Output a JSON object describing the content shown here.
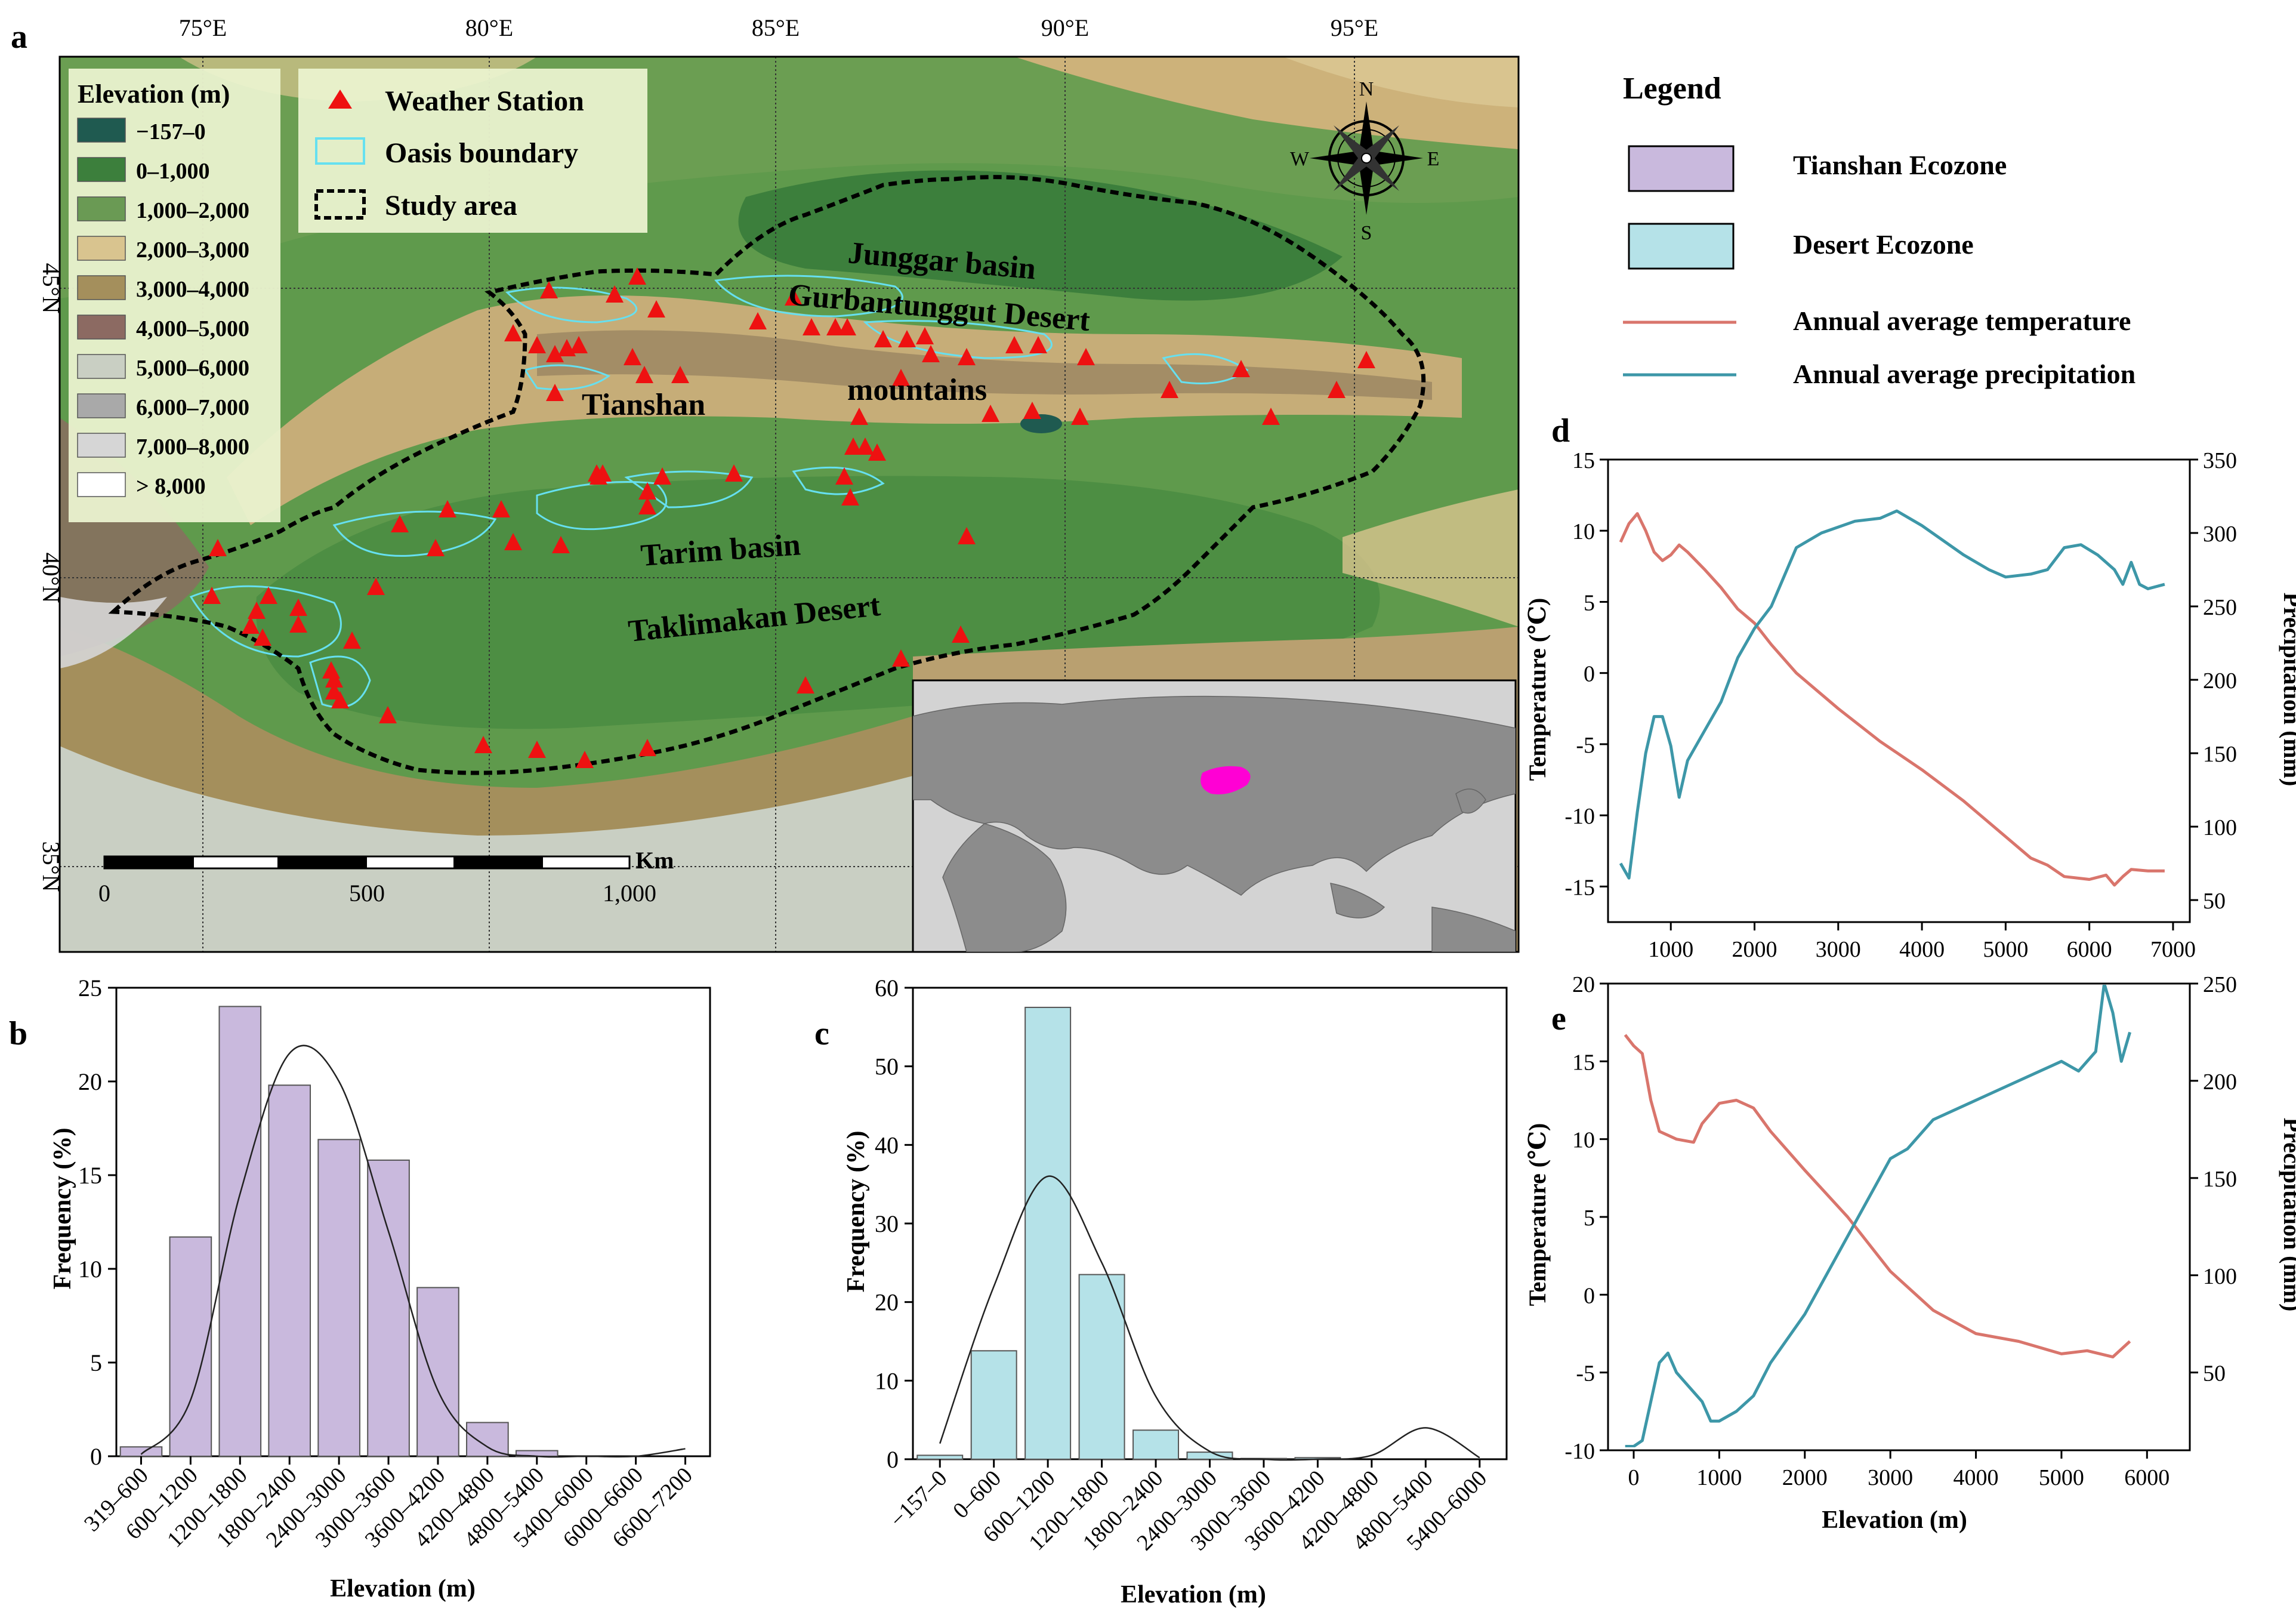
{
  "colors": {
    "tianshan": "#c9b9dd",
    "desert": "#b5e2e8",
    "temp_line": "#d9756c",
    "precip_line": "#3d97a8",
    "station": "#ee1111",
    "oasis": "#66e0f0",
    "map_low": "#2e7a3e",
    "map_mid": "#5f9a4c",
    "map_high": "#c8b184"
  },
  "panel_labels": {
    "a": "a",
    "b": "b",
    "c": "c",
    "d": "d",
    "e": "e"
  },
  "map": {
    "lon_labels": [
      "75°E",
      "80°E",
      "85°E",
      "90°E",
      "95°E"
    ],
    "lat_labels": [
      "45°N",
      "40°N",
      "35°N"
    ],
    "elevation_legend": {
      "title": "Elevation (m)",
      "items": [
        {
          "label": "−157–0",
          "color": "#1f5a50"
        },
        {
          "label": "0–1,000",
          "color": "#3c7f3c"
        },
        {
          "label": "1,000–2,000",
          "color": "#6a9a54"
        },
        {
          "label": "2,000–3,000",
          "color": "#d9c48f"
        },
        {
          "label": "3,000–4,000",
          "color": "#a48f5c"
        },
        {
          "label": "4,000–5,000",
          "color": "#8c6a62"
        },
        {
          "label": "5,000–6,000",
          "color": "#c9cfc3"
        },
        {
          "label": "6,000–7,000",
          "color": "#a9a9a9"
        },
        {
          "label": "7,000–8,000",
          "color": "#d6d6d6"
        },
        {
          "label": "> 8,000",
          "color": "#ffffff"
        }
      ]
    },
    "symbol_legend": {
      "station": "Weather Station",
      "oasis": "Oasis boundary",
      "study": "Study area"
    },
    "compass": {
      "n": "N",
      "s": "S",
      "e": "E",
      "w": "W"
    },
    "place_labels": {
      "junggar": "Junggar basin",
      "gurbantunggut": "Gurbantunggut Desert",
      "mountains": "mountains",
      "tianshan": "Tianshan",
      "tarim": "Tarim basin",
      "taklimakan": "Taklimakan Desert"
    },
    "scale": {
      "ticks": [
        "0",
        "500",
        "1,000"
      ],
      "unit": "Km"
    }
  },
  "legend": {
    "title": "Legend",
    "tianshan": "Tianshan Ecozone",
    "desert": "Desert Ecozone",
    "temp": "Annual average temperature",
    "precip": "Annual average precipitation"
  },
  "chart_data": [
    {
      "id": "b",
      "type": "bar",
      "xlabel": "Elevation (m)",
      "ylabel": "Frequency (%)",
      "ylim": [
        0,
        25
      ],
      "yticks": [
        "0",
        "5",
        "10",
        "15",
        "20",
        "25"
      ],
      "categories": [
        "319–600",
        "600–1200",
        "1200–1800",
        "1800–2400",
        "2400–3000",
        "3000–3600",
        "3600–4200",
        "4200–4800",
        "4800–5400",
        "5400–6000",
        "6000–6600",
        "6600–7200"
      ],
      "values": [
        0.5,
        11.7,
        24.0,
        19.8,
        16.9,
        15.8,
        9.0,
        1.8,
        0.3,
        0,
        0,
        0
      ],
      "fit_curve": [
        0.1,
        3.0,
        14.0,
        21.5,
        20.0,
        12.0,
        3.5,
        0.5,
        0,
        0,
        0,
        0.4
      ]
    },
    {
      "id": "c",
      "type": "bar",
      "xlabel": "Elevation (m)",
      "ylabel": "Frequency (%)",
      "ylim": [
        0,
        60
      ],
      "yticks": [
        "0",
        "10",
        "20",
        "30",
        "40",
        "50",
        "60"
      ],
      "categories": [
        "−157–0",
        "0–600",
        "600–1200",
        "1200–1800",
        "1800–2400",
        "2400–3000",
        "3000–3600",
        "3600–4200",
        "4200–4800",
        "4800–5400",
        "5400–6000"
      ],
      "values": [
        0.5,
        13.8,
        57.5,
        23.5,
        3.7,
        0.9,
        0.1,
        0.2,
        0,
        0,
        0
      ],
      "fit_curve": [
        2.0,
        22.0,
        36.0,
        25.0,
        8.0,
        1.0,
        0,
        0,
        0.5,
        4.0,
        0.2
      ]
    },
    {
      "id": "d",
      "type": "line",
      "xlabel": "",
      "ylabel": "Temperature (℃)",
      "y2label": "Precipitation (mm)",
      "xlim": [
        250,
        7200
      ],
      "xticks": [
        "1000",
        "2000",
        "3000",
        "4000",
        "5000",
        "6000",
        "7000"
      ],
      "ylim": [
        -17.5,
        15
      ],
      "yticks": [
        "-15",
        "-10",
        "-5",
        "0",
        "5",
        "10",
        "15"
      ],
      "y2lim": [
        35,
        350
      ],
      "y2ticks": [
        "50",
        "100",
        "150",
        "200",
        "250",
        "300",
        "350"
      ],
      "series": [
        {
          "axis": "left",
          "x": [
            400,
            500,
            600,
            700,
            800,
            900,
            1000,
            1100,
            1200,
            1400,
            1600,
            1800,
            2000,
            2200,
            2500,
            3000,
            3500,
            4000,
            4500,
            5000,
            5300,
            5500,
            5700,
            6000,
            6200,
            6300,
            6400,
            6500,
            6700,
            6900
          ],
          "y": [
            9.2,
            10.5,
            11.2,
            10.0,
            8.5,
            7.9,
            8.3,
            9.0,
            8.5,
            7.3,
            6.0,
            4.5,
            3.5,
            2.0,
            0,
            -2.5,
            -4.8,
            -6.8,
            -9.0,
            -11.5,
            -13.0,
            -13.5,
            -14.3,
            -14.5,
            -14.2,
            -14.9,
            -14.3,
            -13.8,
            -13.9,
            -13.9
          ]
        },
        {
          "axis": "right",
          "x": [
            400,
            500,
            600,
            700,
            800,
            900,
            1000,
            1100,
            1200,
            1400,
            1600,
            1800,
            2000,
            2200,
            2500,
            2800,
            3200,
            3500,
            3700,
            4000,
            4500,
            4800,
            5000,
            5300,
            5500,
            5700,
            5900,
            6100,
            6300,
            6400,
            6500,
            6600,
            6700,
            6900
          ],
          "y": [
            75,
            65,
            110,
            150,
            175,
            175,
            155,
            120,
            145,
            165,
            185,
            215,
            235,
            250,
            290,
            300,
            308,
            310,
            315,
            305,
            285,
            275,
            270,
            272,
            275,
            290,
            292,
            285,
            275,
            265,
            280,
            265,
            262,
            265
          ]
        }
      ]
    },
    {
      "id": "e",
      "type": "line",
      "xlabel": "Elevation (m)",
      "ylabel": "Temperature (℃)",
      "y2label": "Precipitation (mm)",
      "xlim": [
        -300,
        6500
      ],
      "xticks": [
        "0",
        "1000",
        "2000",
        "3000",
        "4000",
        "5000",
        "6000"
      ],
      "ylim": [
        -10,
        20
      ],
      "yticks": [
        "-10",
        "-5",
        "0",
        "5",
        "10",
        "15",
        "20"
      ],
      "y2lim": [
        10,
        250
      ],
      "y2ticks": [
        "50",
        "100",
        "150",
        "200",
        "250"
      ],
      "series": [
        {
          "axis": "left",
          "x": [
            -100,
            0,
            100,
            200,
            300,
            500,
            700,
            800,
            1000,
            1200,
            1400,
            1600,
            2000,
            2500,
            3000,
            3500,
            4000,
            4500,
            5000,
            5300,
            5600,
            5800
          ],
          "y": [
            16.7,
            16.0,
            15.5,
            12.5,
            10.5,
            10.0,
            9.8,
            11.0,
            12.3,
            12.5,
            12.0,
            10.5,
            8.0,
            5.0,
            1.5,
            -1.0,
            -2.5,
            -3.0,
            -3.8,
            -3.6,
            -4.0,
            -3.0
          ]
        },
        {
          "axis": "right",
          "x": [
            -100,
            0,
            100,
            200,
            300,
            400,
            500,
            600,
            700,
            800,
            900,
            1000,
            1200,
            1400,
            1600,
            2000,
            2500,
            3000,
            3200,
            3500,
            4000,
            4500,
            5000,
            5200,
            5400,
            5500,
            5600,
            5700,
            5800
          ],
          "y": [
            12,
            12,
            15,
            35,
            55,
            60,
            50,
            45,
            40,
            35,
            25,
            25,
            30,
            38,
            55,
            80,
            120,
            160,
            165,
            180,
            190,
            200,
            210,
            205,
            215,
            250,
            235,
            210,
            225
          ]
        }
      ]
    }
  ]
}
